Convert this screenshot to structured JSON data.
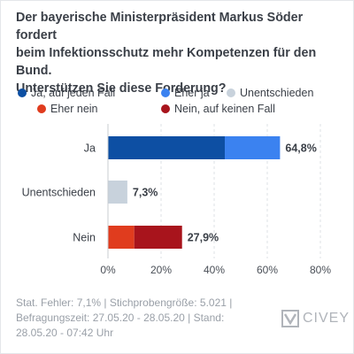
{
  "title_lines": [
    "Der bayerische Ministerpräsident Markus Söder fordert",
    "beim Infektionsschutz mehr Kompetenzen für den Bund.",
    "Unterstützen Sie diese Forderung?"
  ],
  "footer_lines": [
    "Stat. Fehler: 7,1% | Stichprobengröße: 5.021 |",
    "Befragungszeit: 27.05.20 - 28.05.20 | Stand:",
    "28.05.20 - 07:42 Uhr"
  ],
  "logo": {
    "text": "CIVEY",
    "icon": "civey-logo-icon"
  },
  "chart_data": {
    "type": "bar",
    "orientation": "horizontal",
    "stacked": true,
    "categories": [
      "Ja",
      "Unentschieden",
      "Nein"
    ],
    "totals_labels": [
      "64,8%",
      "7,3%",
      "27,9%"
    ],
    "series": [
      {
        "name": "Ja, auf jeden Fall",
        "color": "#0d4fa3",
        "values": [
          44.0,
          0,
          0
        ]
      },
      {
        "name": "Eher ja",
        "color": "#3b82f0",
        "values": [
          20.8,
          0,
          0
        ]
      },
      {
        "name": "Unentschieden",
        "color": "#c8d2dc",
        "values": [
          0,
          7.3,
          0
        ]
      },
      {
        "name": "Eher nein",
        "color": "#e03c1e",
        "values": [
          0,
          0,
          9.9
        ]
      },
      {
        "name": "Nein, auf keinen Fall",
        "color": "#a8141c",
        "values": [
          0,
          0,
          18.0
        ]
      }
    ],
    "xlim": [
      0,
      80
    ],
    "xticks": [
      0,
      20,
      40,
      60,
      80
    ],
    "xtick_labels": [
      "0%",
      "20%",
      "40%",
      "60%",
      "80%"
    ],
    "grid": true,
    "legend_position": "top"
  }
}
